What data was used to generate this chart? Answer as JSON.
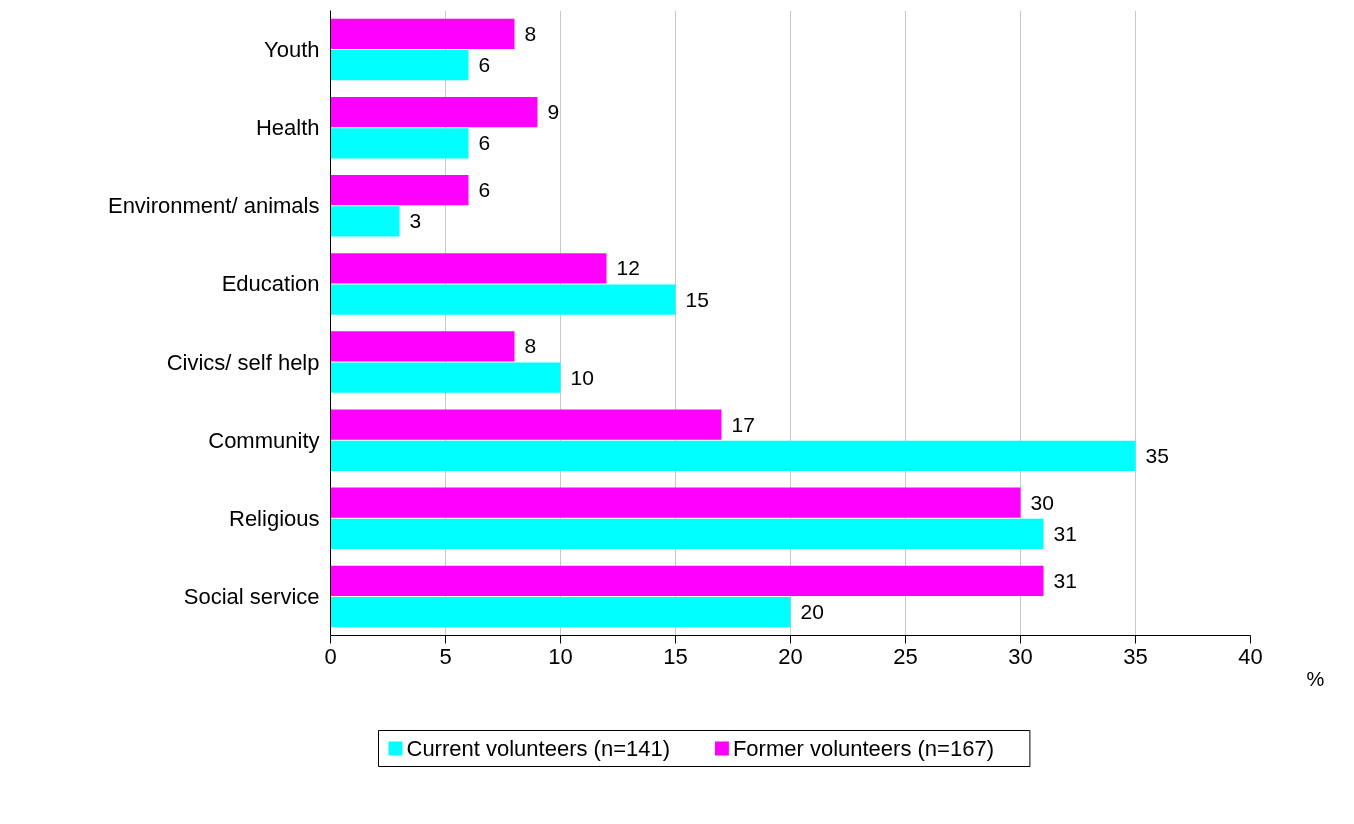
{
  "chart_data": {
    "type": "bar",
    "orientation": "horizontal",
    "xlabel": "%",
    "categories": [
      "Youth",
      "Health",
      "Environment/ animals",
      "Education",
      "Civics/ self help",
      "Community",
      "Religious",
      "Social service"
    ],
    "series": [
      {
        "name": "Current volunteers (n=141)",
        "color": "#00ffff",
        "values": [
          6,
          6,
          3,
          15,
          10,
          35,
          31,
          20
        ]
      },
      {
        "name": "Former volunteers (n=167)",
        "color": "#ff00ff",
        "values": [
          8,
          9,
          6,
          12,
          8,
          17,
          30,
          31
        ]
      }
    ],
    "xlim": [
      0,
      40
    ],
    "xticks": [
      0,
      5,
      10,
      15,
      20,
      25,
      30,
      35,
      40
    ],
    "grid": "x",
    "legend": "bottom",
    "data_labels": true
  }
}
